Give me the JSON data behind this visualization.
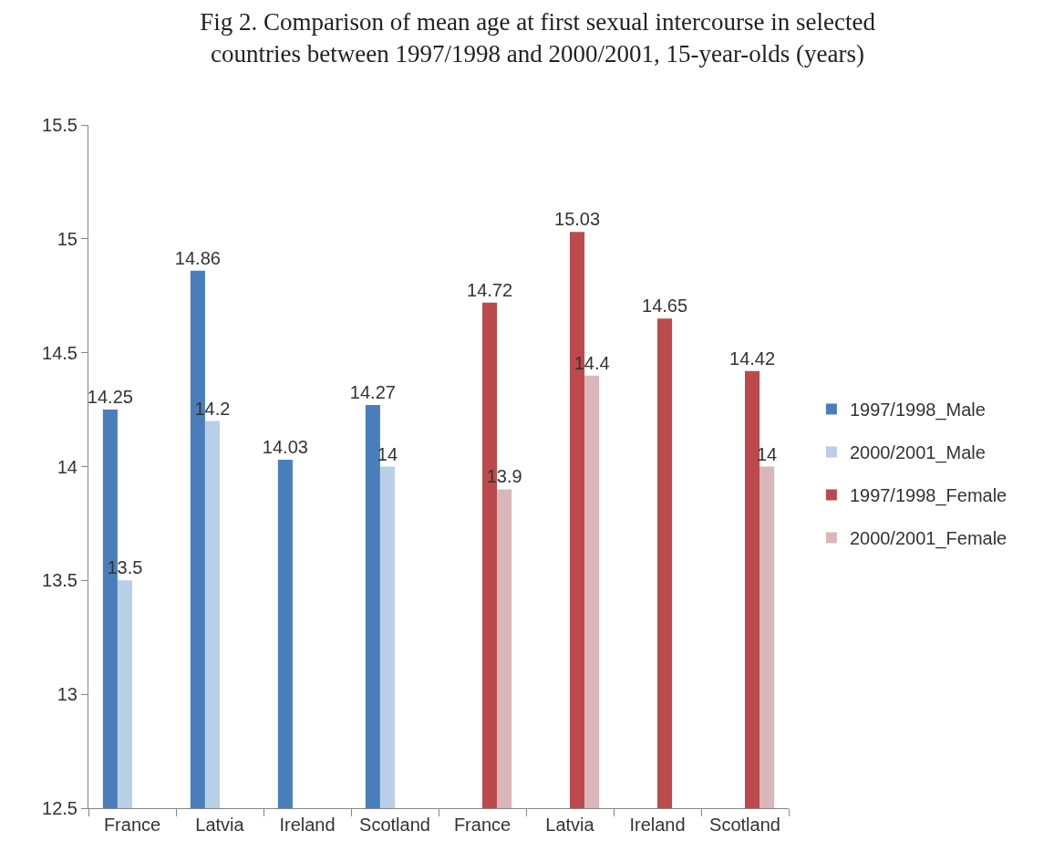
{
  "chart_data": {
    "type": "bar",
    "title": "Fig 2. Comparison of mean age at first sexual intercourse in selected\ncountries between 1997/1998 and 2000/2001, 15-year-olds (years)",
    "categories": [
      "France",
      "Latvia",
      "Ireland",
      "Scotland",
      "France",
      "Latvia",
      "Ireland",
      "Scotland"
    ],
    "series": [
      {
        "name": "1997/1998_Male",
        "color": "#4a7ebb",
        "values": [
          14.25,
          14.86,
          14.03,
          14.27,
          null,
          null,
          null,
          null
        ]
      },
      {
        "name": "2000/2001_Male",
        "color": "#b9cfe8",
        "values": [
          13.5,
          14.2,
          null,
          14,
          null,
          null,
          null,
          null
        ]
      },
      {
        "name": "1997/1998_Female",
        "color": "#bc4a4c",
        "values": [
          null,
          null,
          null,
          null,
          14.72,
          15.03,
          14.65,
          14.42
        ]
      },
      {
        "name": "2000/2001_Female",
        "color": "#d8b6b9",
        "values": [
          null,
          null,
          null,
          null,
          13.9,
          14.4,
          null,
          14
        ]
      }
    ],
    "ylim": [
      12.5,
      15.5
    ],
    "yticks": [
      12.5,
      13,
      13.5,
      14,
      14.5,
      15,
      15.5
    ],
    "data_labels": true,
    "legend": "right"
  }
}
